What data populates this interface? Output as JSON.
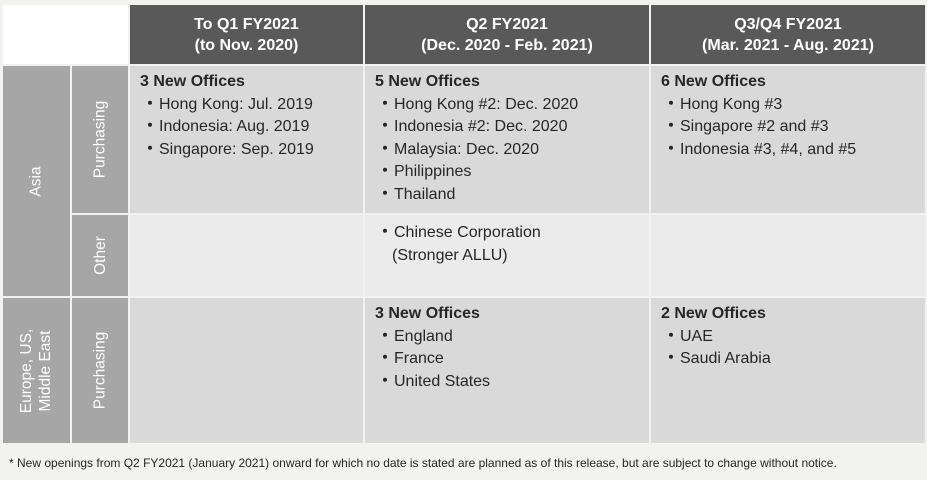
{
  "header": {
    "col1": {
      "line1": "To Q1 FY2021",
      "line2": "(to Nov. 2020)"
    },
    "col2": {
      "line1": "Q2 FY2021",
      "line2": "(Dec. 2020 - Feb. 2021)"
    },
    "col3": {
      "line1": "Q3/Q4 FY2021",
      "line2": "(Mar. 2021 - Aug. 2021)"
    }
  },
  "regions": {
    "asia": "Asia",
    "europe_line1": "Europe, US,",
    "europe_line2": "Middle East"
  },
  "types": {
    "asia_purchasing": "Purchasing",
    "asia_other": "Other",
    "europe_purchasing": "Purchasing"
  },
  "bullet": "・",
  "cells": {
    "asia_purchasing_q1": {
      "title": "3 New Offices",
      "items": [
        "Hong Kong: Jul. 2019",
        "Indonesia: Aug. 2019",
        "Singapore: Sep. 2019"
      ]
    },
    "asia_purchasing_q2": {
      "title": "5 New Offices",
      "items": [
        "Hong Kong #2: Dec. 2020",
        "Indonesia #2: Dec. 2020",
        "Malaysia: Dec. 2020",
        "Philippines",
        "Thailand"
      ]
    },
    "asia_purchasing_q3q4": {
      "title": "6 New Offices",
      "items": [
        "Hong Kong #3",
        "Singapore #2 and #3",
        "Indonesia #3, #4, and #5"
      ]
    },
    "asia_other_q2": {
      "item_line1": "Chinese Corporation",
      "item_line2": "(Stronger ALLU)"
    },
    "europe_purchasing_q2": {
      "title": "3 New Offices",
      "items": [
        "England",
        "France",
        "United States"
      ]
    },
    "europe_purchasing_q3q4": {
      "title": "2 New Offices",
      "items": [
        "UAE",
        "Saudi Arabia"
      ]
    }
  },
  "footnote": "* New openings from Q2 FY2021 (January 2021) onward for which no date is stated are planned as of this release, but are subject to change without notice."
}
